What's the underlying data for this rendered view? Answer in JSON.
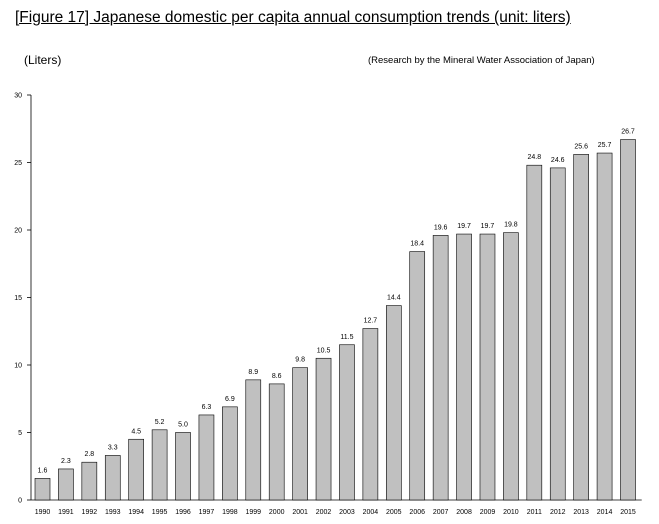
{
  "header": {
    "title": "[Figure 17] Japanese domestic per capita annual consumption trends (unit: liters)",
    "units": "(Liters)",
    "source": "(Research by the Mineral Water Association of Japan)"
  },
  "chart_data": {
    "type": "bar",
    "title": "[Figure 17] Japanese domestic per capita annual consumption trends (unit: liters)",
    "xlabel": "",
    "ylabel": "(Liters)",
    "ylim": [
      0,
      30
    ],
    "yticks": [
      0,
      5,
      10,
      15,
      20,
      25,
      30
    ],
    "grid": false,
    "bar_color": "#c0c0c0",
    "categories": [
      "1990",
      "1991",
      "1992",
      "1993",
      "1994",
      "1995",
      "1996",
      "1997",
      "1998",
      "1999",
      "2000",
      "2001",
      "2002",
      "2003",
      "2004",
      "2005",
      "2006",
      "2007",
      "2008",
      "2009",
      "2010",
      "2011",
      "2012",
      "2013",
      "2014",
      "2015"
    ],
    "values": [
      1.6,
      2.3,
      2.8,
      3.3,
      4.5,
      5.2,
      5.0,
      6.3,
      6.9,
      8.9,
      8.6,
      9.8,
      10.5,
      11.5,
      12.7,
      14.4,
      18.4,
      19.6,
      19.7,
      19.7,
      19.8,
      24.8,
      24.6,
      25.6,
      25.7,
      26.7
    ],
    "value_labels": [
      "1.6",
      "2.3",
      "2.8",
      "3.3",
      "4.5",
      "5.2",
      "5.0",
      "6.3",
      "6.9",
      "8.9",
      "8.6",
      "9.8",
      "10.5",
      "11.5",
      "12.7",
      "14.4",
      "18.4",
      "19.6",
      "19.7",
      "19.7",
      "19.8",
      "24.8",
      "24.6",
      "25.6",
      "25.7",
      "26.7"
    ]
  }
}
